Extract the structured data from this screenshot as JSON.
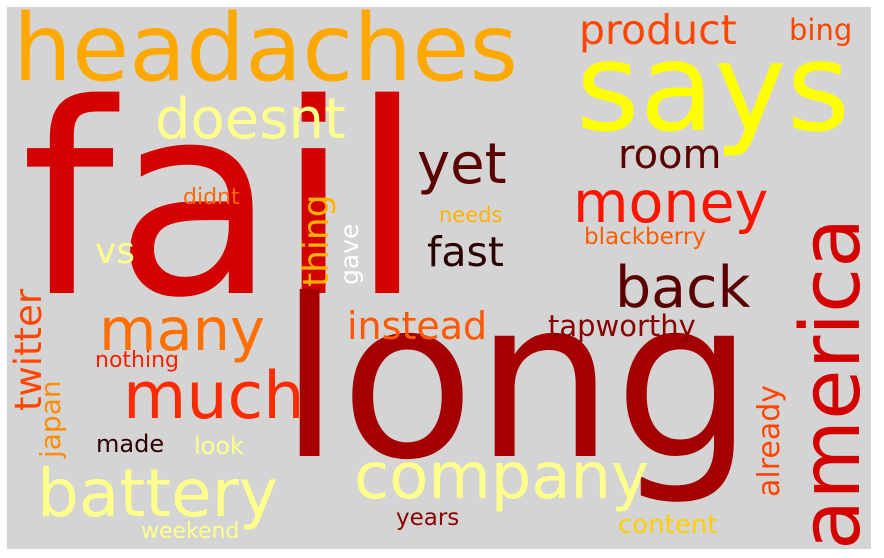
{
  "colors": {
    "background": "#d4d4d4"
  },
  "words": [
    {
      "id": "fail",
      "text": "fail",
      "color": "#d40000"
    },
    {
      "id": "long",
      "text": "long",
      "color": "#a50000"
    },
    {
      "id": "headaches",
      "text": "headaches",
      "color": "#ffa800"
    },
    {
      "id": "says",
      "text": "says",
      "color": "#ffff00"
    },
    {
      "id": "america",
      "text": "america",
      "color": "#d40000"
    },
    {
      "id": "battery",
      "text": "battery",
      "color": "#ffff8c"
    },
    {
      "id": "company",
      "text": "company",
      "color": "#ffff8c"
    },
    {
      "id": "much",
      "text": "much",
      "color": "#ff2a00"
    },
    {
      "id": "many",
      "text": "many",
      "color": "#ff7000"
    },
    {
      "id": "money",
      "text": "money",
      "color": "#ff1400"
    },
    {
      "id": "back",
      "text": "back",
      "color": "#5a0000"
    },
    {
      "id": "yet",
      "text": "yet",
      "color": "#5a0000"
    },
    {
      "id": "doesnt",
      "text": "doesnt",
      "color": "#ffff8c"
    },
    {
      "id": "product",
      "text": "product",
      "color": "#ff4600"
    },
    {
      "id": "bing",
      "text": "bing",
      "color": "#ff4600"
    },
    {
      "id": "room",
      "text": "room",
      "color": "#5a0000"
    },
    {
      "id": "fast",
      "text": "fast",
      "color": "#2a0000"
    },
    {
      "id": "instead",
      "text": "instead",
      "color": "#ff5800"
    },
    {
      "id": "tapworthy",
      "text": "tapworthy",
      "color": "#8b0000"
    },
    {
      "id": "blackberry",
      "text": "blackberry",
      "color": "#ff5c00"
    },
    {
      "id": "needs",
      "text": "needs",
      "color": "#ffb300"
    },
    {
      "id": "didnt",
      "text": "didnt",
      "color": "#ff6a00"
    },
    {
      "id": "vs",
      "text": "vs",
      "color": "#ffff8c"
    },
    {
      "id": "twitter",
      "text": "twitter",
      "color": "#ff4600"
    },
    {
      "id": "japan",
      "text": "japan",
      "color": "#ff8c00"
    },
    {
      "id": "thing",
      "text": "thing",
      "color": "#ffb300"
    },
    {
      "id": "gave",
      "text": "gave",
      "color": "#ffffff"
    },
    {
      "id": "already",
      "text": "already",
      "color": "#ff4600"
    },
    {
      "id": "nothing",
      "text": "nothing",
      "color": "#ff1e00"
    },
    {
      "id": "made",
      "text": "made",
      "color": "#2a0000"
    },
    {
      "id": "look",
      "text": "look",
      "color": "#ffff8c"
    },
    {
      "id": "weekend",
      "text": "weekend",
      "color": "#ffff8c"
    },
    {
      "id": "years",
      "text": "years",
      "color": "#8b0000"
    },
    {
      "id": "content",
      "text": "content",
      "color": "#ffd000"
    }
  ]
}
